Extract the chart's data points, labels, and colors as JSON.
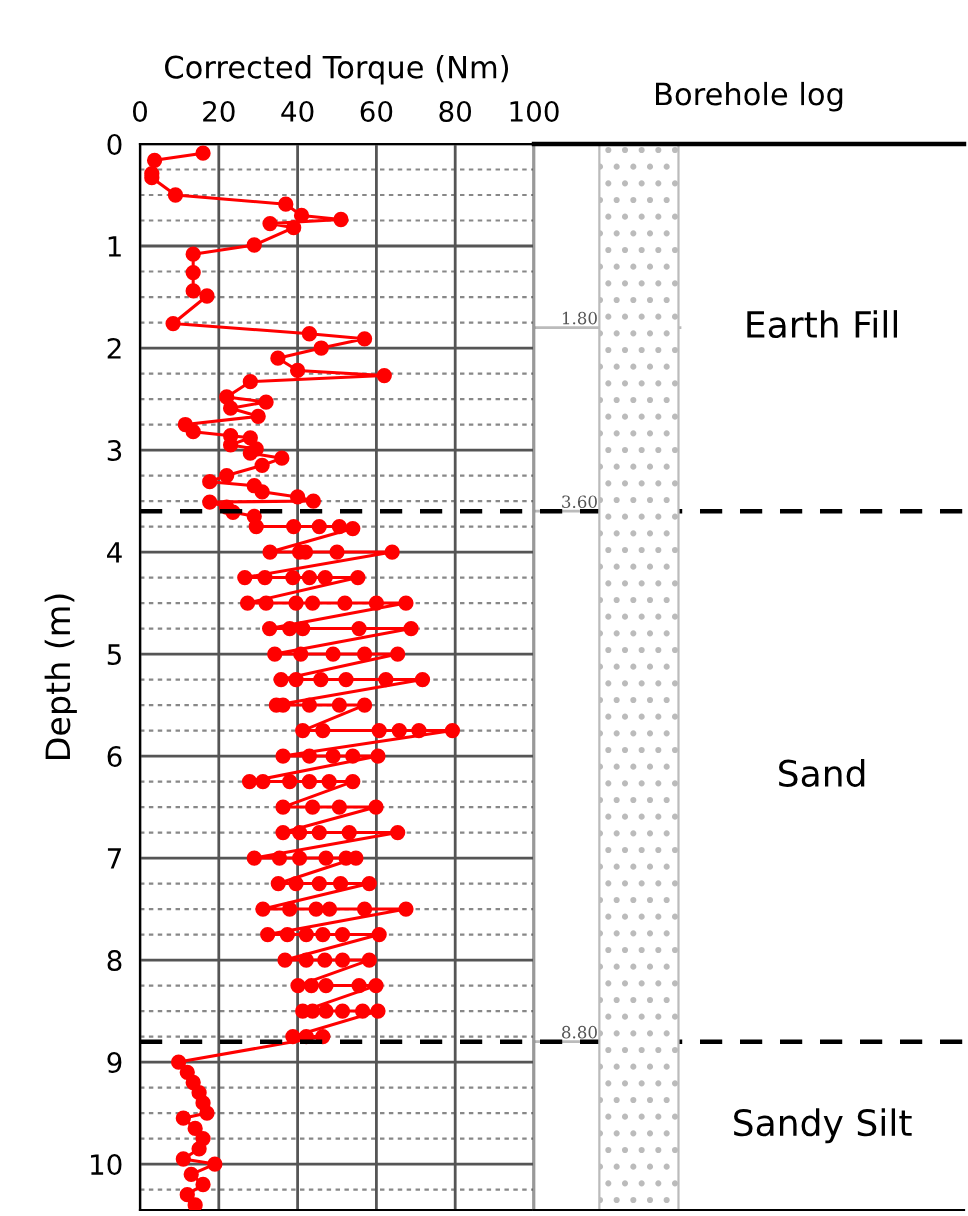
{
  "chart_data": [
    {
      "type": "line",
      "xlabel": "Corrected Torque (Nm)",
      "ylabel": "Depth (m)",
      "xlim": [
        0,
        100
      ],
      "xticks": [
        0,
        20,
        40,
        60,
        80,
        100
      ],
      "ylim": [
        10.45,
        0
      ],
      "yticks": [
        0,
        1,
        2,
        3,
        4,
        5,
        6,
        7,
        8,
        9,
        10
      ],
      "grid": true,
      "marker": "circle",
      "line_style": "solid",
      "ref_lines": [
        {
          "axis": "y",
          "value": 1.8,
          "label": "1.80",
          "color": "#bbbbbb",
          "line_style": "solid"
        },
        {
          "axis": "y",
          "value": 3.6,
          "label": "3.60",
          "color": "#000000",
          "line_style": "dashed"
        },
        {
          "axis": "y",
          "value": 8.8,
          "label": "8.80",
          "color": "#000000",
          "line_style": "dashed"
        }
      ],
      "series": [
        {
          "color": "#ff0000",
          "x": [
            16,
            3.7,
            3,
            3,
            9,
            37,
            41,
            51,
            33,
            39,
            29,
            13.5,
            13.5,
            13.5,
            17,
            8.4,
            43,
            57,
            46,
            35,
            40,
            62,
            28,
            22,
            32,
            23,
            30,
            11.5,
            13.5,
            23,
            28,
            23,
            29.5,
            28,
            36,
            31,
            22,
            17.7,
            29,
            31,
            40,
            44,
            17.7,
            22,
            23.6,
            29,
            29.5,
            39,
            45.5,
            50.6,
            54,
            33,
            40.5,
            42,
            50,
            64,
            26.6,
            31.7,
            38.8,
            43,
            47,
            55.3,
            27.3,
            32,
            39.6,
            43.8,
            52,
            60,
            67.5,
            32.9,
            38,
            41.3,
            55.6,
            68.8,
            34.2,
            40.8,
            49,
            57,
            65.4,
            35.8,
            39.6,
            45.9,
            52.3,
            62.4,
            71.7,
            34.6,
            36.3,
            43,
            50.6,
            57,
            41.3,
            46.4,
            60.7,
            65.8,
            70.8,
            79.3,
            36.3,
            43,
            49,
            54,
            60.4,
            27.8,
            31.2,
            38,
            43,
            48,
            54,
            36.3,
            43.8,
            50.6,
            59.9,
            36.3,
            40.5,
            45.5,
            53.1,
            65.4,
            29,
            35.4,
            40.5,
            47.2,
            52.3,
            54.8,
            35.1,
            39.6,
            45.5,
            50.9,
            58.2,
            31.2,
            38,
            44.7,
            48.1,
            57,
            67.5,
            32.4,
            37.4,
            42.2,
            46.4,
            51.4,
            60.7,
            36.8,
            42.2,
            46.9,
            51.4,
            58.2,
            40.1,
            43.5,
            47.2,
            55.6,
            59.9,
            41.3,
            43.8,
            47.2,
            51.4,
            56.5,
            60.4,
            38.8,
            42.2,
            46.4,
            9.8,
            12,
            13.5,
            15,
            16,
            17,
            11,
            14,
            16,
            15,
            11,
            19,
            13,
            16,
            12,
            14
          ],
          "values": [
            0.09,
            0.16,
            0.29,
            0.33,
            0.5,
            0.59,
            0.7,
            0.74,
            0.78,
            0.82,
            0.99,
            1.08,
            1.26,
            1.44,
            1.49,
            1.76,
            1.86,
            1.91,
            2.0,
            2.1,
            2.22,
            2.27,
            2.33,
            2.48,
            2.53,
            2.59,
            2.67,
            2.75,
            2.82,
            2.86,
            2.88,
            2.95,
            2.99,
            3.03,
            3.08,
            3.15,
            3.25,
            3.31,
            3.35,
            3.41,
            3.46,
            3.5,
            3.51,
            3.56,
            3.61,
            3.65,
            3.75,
            3.75,
            3.75,
            3.75,
            3.77,
            4.0,
            4.0,
            4.0,
            4.0,
            4.0,
            4.25,
            4.25,
            4.25,
            4.25,
            4.25,
            4.25,
            4.5,
            4.5,
            4.5,
            4.5,
            4.5,
            4.5,
            4.5,
            4.75,
            4.75,
            4.75,
            4.75,
            4.75,
            5.0,
            5.0,
            5.0,
            5.0,
            5.0,
            5.25,
            5.25,
            5.25,
            5.25,
            5.25,
            5.25,
            5.5,
            5.5,
            5.5,
            5.5,
            5.5,
            5.75,
            5.75,
            5.75,
            5.75,
            5.75,
            5.75,
            6.0,
            6.0,
            6.0,
            6.0,
            6.0,
            6.25,
            6.25,
            6.25,
            6.25,
            6.25,
            6.25,
            6.5,
            6.5,
            6.5,
            6.5,
            6.75,
            6.75,
            6.75,
            6.75,
            6.75,
            7.0,
            7.0,
            7.0,
            7.0,
            7.0,
            7.0,
            7.25,
            7.25,
            7.25,
            7.25,
            7.25,
            7.5,
            7.5,
            7.5,
            7.5,
            7.5,
            7.5,
            7.75,
            7.75,
            7.75,
            7.75,
            7.75,
            7.75,
            8.0,
            8.0,
            8.0,
            8.0,
            8.0,
            8.25,
            8.25,
            8.25,
            8.25,
            8.25,
            8.5,
            8.5,
            8.5,
            8.5,
            8.5,
            8.5,
            8.75,
            8.75,
            8.75,
            9.0,
            9.1,
            9.2,
            9.3,
            9.4,
            9.5,
            9.55,
            9.65,
            9.75,
            9.85,
            9.95,
            10.0,
            10.1,
            10.2,
            10.3,
            10.4
          ]
        }
      ]
    },
    {
      "type": "other",
      "title": "Borehole log",
      "annotations": [
        "Earth Fill",
        "Sand",
        "Sandy Silt"
      ]
    }
  ]
}
